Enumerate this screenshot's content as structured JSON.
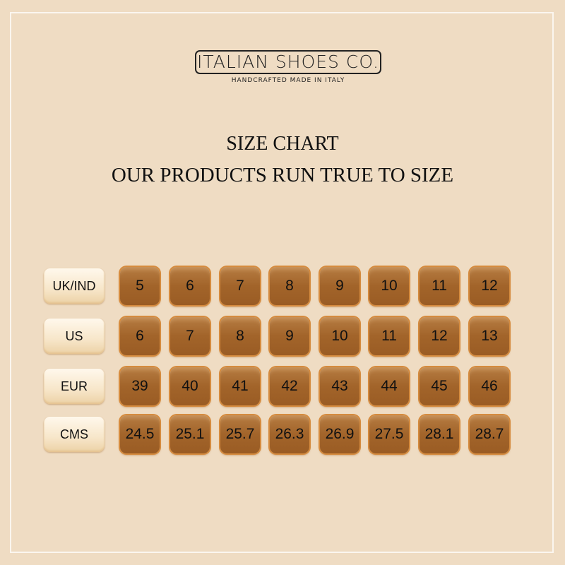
{
  "brand": {
    "name": "ITALIAN SHOES CO.",
    "tagline": "HANDCRAFTED MADE IN ITALY"
  },
  "title": "SIZE CHART",
  "subtitle": "OUR PRODUCTS RUN TRUE TO SIZE",
  "colors": {
    "background": "#efdcc3",
    "tile": "#a2642a",
    "tile_rim": "#d58b3e",
    "label": "#f7e6c9"
  },
  "rows": [
    {
      "label": "UK/IND",
      "values": [
        "5",
        "6",
        "7",
        "8",
        "9",
        "10",
        "11",
        "12"
      ]
    },
    {
      "label": "US",
      "values": [
        "6",
        "7",
        "8",
        "9",
        "10",
        "11",
        "12",
        "13"
      ]
    },
    {
      "label": "EUR",
      "values": [
        "39",
        "40",
        "41",
        "42",
        "43",
        "44",
        "45",
        "46"
      ]
    },
    {
      "label": "CMS",
      "values": [
        "24.5",
        "25.1",
        "25.7",
        "26.3",
        "26.9",
        "27.5",
        "28.1",
        "28.7"
      ]
    }
  ]
}
